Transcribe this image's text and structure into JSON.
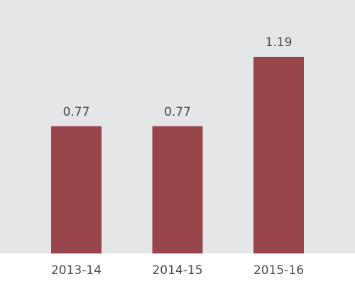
{
  "chart_data": {
    "type": "bar",
    "categories": [
      "2013-14",
      "2014-15",
      "2015-16"
    ],
    "values": [
      0.77,
      0.77,
      1.19
    ],
    "color": "#98454b"
  }
}
